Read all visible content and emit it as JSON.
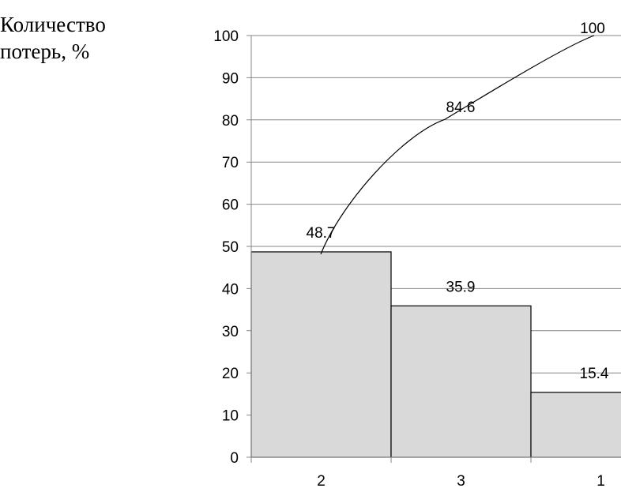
{
  "chart_data": {
    "type": "bar",
    "ylabel_line1": "Количество",
    "ylabel_line2": "потерь, %",
    "categories": [
      "2",
      "3",
      "1"
    ],
    "series": [
      {
        "type": "bar",
        "values": [
          48.7,
          35.9,
          15.4
        ]
      },
      {
        "type": "line",
        "values": [
          48.7,
          84.6,
          100
        ]
      }
    ],
    "bar_labels": [
      "48.7",
      "35.9",
      "15.4"
    ],
    "line_labels": [
      "48.7",
      "84.6",
      "100"
    ],
    "ylim": [
      0,
      100
    ],
    "yticks": [
      "0",
      "10",
      "20",
      "30",
      "40",
      "50",
      "60",
      "70",
      "80",
      "90",
      "100"
    ],
    "grid": true,
    "bar_color": "#d9d9d9",
    "line_color": "#000000"
  }
}
